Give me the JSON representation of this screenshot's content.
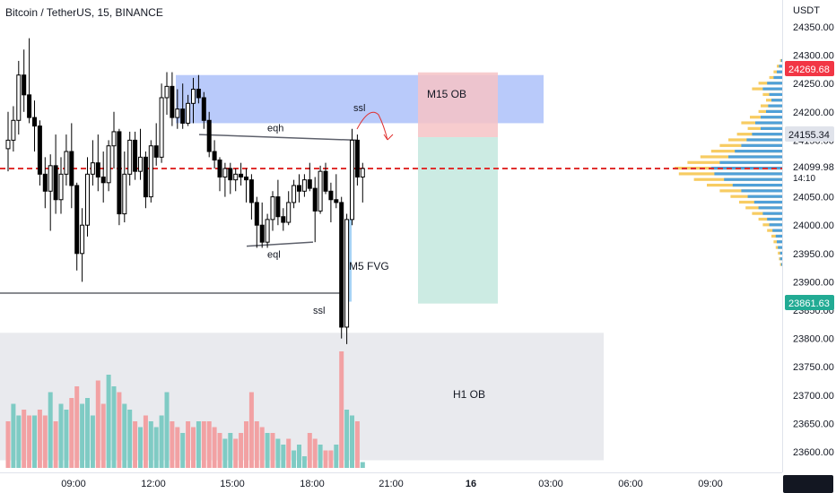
{
  "header": {
    "title": "Bitcoin / TetherUS, 15, BINANCE"
  },
  "colors": {
    "up": "#26a69a",
    "down": "#000000",
    "up_volume": "#7fcbc4",
    "down_volume": "#f2a1a3",
    "current_price_line": "#e0302f",
    "m15_ob_fill": "#7f9ff5",
    "h1_ob_fill": "#dadce2",
    "fvg_fill": "#a7d3f5",
    "trade_stop": "#f6c3c6",
    "trade_target": "#bfe6dc",
    "profile_yellow": "#f6c347",
    "profile_blue": "#3c9be6"
  },
  "chart_data": {
    "type": "candlestick",
    "symbol": "Bitcoin / TetherUS",
    "interval": "15",
    "exchange": "BINANCE",
    "y_axis": {
      "unit": "USDT",
      "range": [
        23570,
        24370
      ],
      "ticks": [
        24350,
        24300,
        24250,
        24200,
        24150,
        24100,
        24050,
        24000,
        23950,
        23900,
        23850,
        23800,
        23750,
        23700,
        23650,
        23600
      ]
    },
    "x_axis": {
      "ticks": [
        "09:00",
        "12:00",
        "15:00",
        "18:00",
        "21:00",
        "16",
        "03:00",
        "06:00",
        "09:00"
      ],
      "bold_ticks": [
        "16"
      ]
    },
    "price_labels": [
      {
        "id": "stop",
        "value": "24269.68",
        "color": "#e0302f"
      },
      {
        "id": "entry",
        "value": "24155.34",
        "color": "#787b86"
      },
      {
        "id": "current",
        "value": "24099.98",
        "sub": "14:10",
        "color": "#131722"
      },
      {
        "id": "target",
        "value": "23861.63",
        "color": "#22ab94"
      }
    ],
    "current_price": 24099.98,
    "candles": [
      {
        "o": 24135,
        "h": 24200,
        "l": 24095,
        "c": 24150
      },
      {
        "o": 24150,
        "h": 24210,
        "l": 24130,
        "c": 24185
      },
      {
        "o": 24185,
        "h": 24290,
        "l": 24160,
        "c": 24265
      },
      {
        "o": 24265,
        "h": 24310,
        "l": 24200,
        "c": 24230
      },
      {
        "o": 24230,
        "h": 24330,
        "l": 24180,
        "c": 24190
      },
      {
        "o": 24190,
        "h": 24220,
        "l": 24130,
        "c": 24175
      },
      {
        "o": 24175,
        "h": 24185,
        "l": 24070,
        "c": 24090
      },
      {
        "o": 24090,
        "h": 24120,
        "l": 24030,
        "c": 24060
      },
      {
        "o": 24060,
        "h": 24125,
        "l": 23990,
        "c": 24105
      },
      {
        "o": 24105,
        "h": 24160,
        "l": 24020,
        "c": 24045
      },
      {
        "o": 24045,
        "h": 24120,
        "l": 24020,
        "c": 24090
      },
      {
        "o": 24090,
        "h": 24160,
        "l": 24070,
        "c": 24130
      },
      {
        "o": 24130,
        "h": 24180,
        "l": 24030,
        "c": 24070
      },
      {
        "o": 24070,
        "h": 24075,
        "l": 23920,
        "c": 23950
      },
      {
        "o": 23950,
        "h": 24030,
        "l": 23900,
        "c": 24000
      },
      {
        "o": 24000,
        "h": 24120,
        "l": 23980,
        "c": 24090
      },
      {
        "o": 24090,
        "h": 24150,
        "l": 24070,
        "c": 24110
      },
      {
        "o": 24110,
        "h": 24160,
        "l": 24060,
        "c": 24085
      },
      {
        "o": 24085,
        "h": 24130,
        "l": 24040,
        "c": 24075
      },
      {
        "o": 24075,
        "h": 24150,
        "l": 24060,
        "c": 24140
      },
      {
        "o": 24140,
        "h": 24200,
        "l": 24100,
        "c": 24165
      },
      {
        "o": 24165,
        "h": 24170,
        "l": 24000,
        "c": 24020
      },
      {
        "o": 24020,
        "h": 24130,
        "l": 24005,
        "c": 24090
      },
      {
        "o": 24090,
        "h": 24165,
        "l": 24070,
        "c": 24150
      },
      {
        "o": 24150,
        "h": 24165,
        "l": 24080,
        "c": 24095
      },
      {
        "o": 24095,
        "h": 24170,
        "l": 24080,
        "c": 24120
      },
      {
        "o": 24120,
        "h": 24130,
        "l": 24030,
        "c": 24050
      },
      {
        "o": 24050,
        "h": 24150,
        "l": 24040,
        "c": 24140
      },
      {
        "o": 24140,
        "h": 24180,
        "l": 24105,
        "c": 24120
      },
      {
        "o": 24120,
        "h": 24250,
        "l": 24110,
        "c": 24225
      },
      {
        "o": 24225,
        "h": 24270,
        "l": 24195,
        "c": 24245
      },
      {
        "o": 24245,
        "h": 24270,
        "l": 24175,
        "c": 24190
      },
      {
        "o": 24190,
        "h": 24240,
        "l": 24170,
        "c": 24205
      },
      {
        "o": 24205,
        "h": 24250,
        "l": 24170,
        "c": 24180
      },
      {
        "o": 24180,
        "h": 24230,
        "l": 24175,
        "c": 24215
      },
      {
        "o": 24215,
        "h": 24260,
        "l": 24180,
        "c": 24240
      },
      {
        "o": 24240,
        "h": 24265,
        "l": 24215,
        "c": 24225
      },
      {
        "o": 24225,
        "h": 24235,
        "l": 24170,
        "c": 24185
      },
      {
        "o": 24185,
        "h": 24200,
        "l": 24120,
        "c": 24130
      },
      {
        "o": 24130,
        "h": 24150,
        "l": 24100,
        "c": 24115
      },
      {
        "o": 24115,
        "h": 24120,
        "l": 24060,
        "c": 24085
      },
      {
        "o": 24085,
        "h": 24110,
        "l": 24050,
        "c": 24100
      },
      {
        "o": 24100,
        "h": 24110,
        "l": 24055,
        "c": 24080
      },
      {
        "o": 24080,
        "h": 24100,
        "l": 24060,
        "c": 24090
      },
      {
        "o": 24090,
        "h": 24110,
        "l": 24070,
        "c": 24085
      },
      {
        "o": 24085,
        "h": 24100,
        "l": 24040,
        "c": 24080
      },
      {
        "o": 24080,
        "h": 24090,
        "l": 24010,
        "c": 24040
      },
      {
        "o": 24040,
        "h": 24050,
        "l": 23960,
        "c": 24000
      },
      {
        "o": 24000,
        "h": 24040,
        "l": 23960,
        "c": 23970
      },
      {
        "o": 23970,
        "h": 24020,
        "l": 23960,
        "c": 24010
      },
      {
        "o": 24010,
        "h": 24060,
        "l": 23990,
        "c": 24050
      },
      {
        "o": 24050,
        "h": 24080,
        "l": 24000,
        "c": 24015
      },
      {
        "o": 24015,
        "h": 24030,
        "l": 23990,
        "c": 24005
      },
      {
        "o": 24005,
        "h": 24060,
        "l": 24000,
        "c": 24040
      },
      {
        "o": 24040,
        "h": 24080,
        "l": 24030,
        "c": 24070
      },
      {
        "o": 24070,
        "h": 24090,
        "l": 24040,
        "c": 24060
      },
      {
        "o": 24060,
        "h": 24090,
        "l": 24050,
        "c": 24080
      },
      {
        "o": 24080,
        "h": 24110,
        "l": 24060,
        "c": 24065
      },
      {
        "o": 24065,
        "h": 24085,
        "l": 23970,
        "c": 24025
      },
      {
        "o": 24025,
        "h": 24105,
        "l": 24020,
        "c": 24095
      },
      {
        "o": 24095,
        "h": 24110,
        "l": 24055,
        "c": 24060
      },
      {
        "o": 24060,
        "h": 24075,
        "l": 24005,
        "c": 24045
      },
      {
        "o": 24045,
        "h": 24090,
        "l": 24030,
        "c": 24040
      },
      {
        "o": 24040,
        "h": 24050,
        "l": 23800,
        "c": 23820
      },
      {
        "o": 23820,
        "h": 24020,
        "l": 23790,
        "c": 24010
      },
      {
        "o": 24010,
        "h": 24170,
        "l": 24000,
        "c": 24150
      },
      {
        "o": 24150,
        "h": 24160,
        "l": 24070,
        "c": 24085
      },
      {
        "o": 24085,
        "h": 24110,
        "l": 24040,
        "c": 24100
      }
    ],
    "volume": [
      {
        "v": 0.4,
        "up": false
      },
      {
        "v": 0.55,
        "up": true
      },
      {
        "v": 0.45,
        "up": true
      },
      {
        "v": 0.5,
        "up": false
      },
      {
        "v": 0.45,
        "up": false
      },
      {
        "v": 0.45,
        "up": true
      },
      {
        "v": 0.5,
        "up": false
      },
      {
        "v": 0.45,
        "up": false
      },
      {
        "v": 0.65,
        "up": true
      },
      {
        "v": 0.4,
        "up": false
      },
      {
        "v": 0.55,
        "up": true
      },
      {
        "v": 0.5,
        "up": true
      },
      {
        "v": 0.6,
        "up": false
      },
      {
        "v": 0.7,
        "up": false
      },
      {
        "v": 0.55,
        "up": true
      },
      {
        "v": 0.6,
        "up": true
      },
      {
        "v": 0.45,
        "up": true
      },
      {
        "v": 0.75,
        "up": false
      },
      {
        "v": 0.55,
        "up": false
      },
      {
        "v": 0.8,
        "up": true
      },
      {
        "v": 0.7,
        "up": true
      },
      {
        "v": 0.65,
        "up": false
      },
      {
        "v": 0.55,
        "up": true
      },
      {
        "v": 0.5,
        "up": true
      },
      {
        "v": 0.4,
        "up": false
      },
      {
        "v": 0.35,
        "up": true
      },
      {
        "v": 0.45,
        "up": false
      },
      {
        "v": 0.4,
        "up": true
      },
      {
        "v": 0.35,
        "up": true
      },
      {
        "v": 0.45,
        "up": true
      },
      {
        "v": 0.65,
        "up": true
      },
      {
        "v": 0.4,
        "up": false
      },
      {
        "v": 0.35,
        "up": false
      },
      {
        "v": 0.3,
        "up": true
      },
      {
        "v": 0.4,
        "up": false
      },
      {
        "v": 0.35,
        "up": false
      },
      {
        "v": 0.4,
        "up": true
      },
      {
        "v": 0.4,
        "up": false
      },
      {
        "v": 0.4,
        "up": false
      },
      {
        "v": 0.35,
        "up": false
      },
      {
        "v": 0.3,
        "up": false
      },
      {
        "v": 0.25,
        "up": true
      },
      {
        "v": 0.3,
        "up": true
      },
      {
        "v": 0.25,
        "up": false
      },
      {
        "v": 0.3,
        "up": false
      },
      {
        "v": 0.4,
        "up": false
      },
      {
        "v": 0.65,
        "up": false
      },
      {
        "v": 0.4,
        "up": false
      },
      {
        "v": 0.35,
        "up": false
      },
      {
        "v": 0.3,
        "up": true
      },
      {
        "v": 0.3,
        "up": false
      },
      {
        "v": 0.25,
        "up": true
      },
      {
        "v": 0.2,
        "up": true
      },
      {
        "v": 0.25,
        "up": false
      },
      {
        "v": 0.15,
        "up": true
      },
      {
        "v": 0.2,
        "up": true
      },
      {
        "v": 0.1,
        "up": true
      },
      {
        "v": 0.3,
        "up": false
      },
      {
        "v": 0.25,
        "up": false
      },
      {
        "v": 0.2,
        "up": true
      },
      {
        "v": 0.15,
        "up": false
      },
      {
        "v": 0.15,
        "up": false
      },
      {
        "v": 0.2,
        "up": true
      },
      {
        "v": 1.0,
        "up": false
      },
      {
        "v": 0.5,
        "up": true
      },
      {
        "v": 0.45,
        "up": true
      },
      {
        "v": 0.4,
        "up": false
      },
      {
        "v": 0.05,
        "up": true
      }
    ],
    "zones": [
      {
        "id": "m15-ob",
        "label": "M15 OB",
        "top": 24265,
        "bottom": 24180,
        "fill": "#7f9ff5"
      },
      {
        "id": "h1-ob",
        "label": "H1 OB",
        "top": 23810,
        "bottom": 23585,
        "fill": "#dadce2"
      },
      {
        "id": "fvg",
        "label": "M5 FVG",
        "top": 24010,
        "bottom": 23865,
        "fill": "#a7d3f5"
      }
    ],
    "trade": {
      "stop": 24269.68,
      "entry": 24155.34,
      "target": 23861.63
    },
    "annotations": [
      {
        "id": "eqh",
        "text": "eqh",
        "price": 24158
      },
      {
        "id": "eql",
        "text": "eql",
        "price": 23965
      },
      {
        "id": "ssl-low",
        "text": "ssl",
        "price": 23880
      },
      {
        "id": "ssl-high",
        "text": "ssl",
        "price": 24185
      },
      {
        "id": "m5-fvg",
        "text": "M5 FVG",
        "price": 23900
      },
      {
        "id": "m15-ob",
        "text": "M15 OB",
        "price": 24240
      },
      {
        "id": "h1-ob",
        "text": "H1 OB",
        "price": 23695
      }
    ],
    "volume_profile": [
      {
        "p": 24290,
        "y": 0.02,
        "b": 0.01
      },
      {
        "p": 24280,
        "y": 0.05,
        "b": 0.03
      },
      {
        "p": 24270,
        "y": 0.08,
        "b": 0.05
      },
      {
        "p": 24260,
        "y": 0.12,
        "b": 0.08
      },
      {
        "p": 24250,
        "y": 0.22,
        "b": 0.14
      },
      {
        "p": 24240,
        "y": 0.28,
        "b": 0.18
      },
      {
        "p": 24230,
        "y": 0.18,
        "b": 0.12
      },
      {
        "p": 24220,
        "y": 0.15,
        "b": 0.1
      },
      {
        "p": 24210,
        "y": 0.2,
        "b": 0.13
      },
      {
        "p": 24200,
        "y": 0.22,
        "b": 0.15
      },
      {
        "p": 24190,
        "y": 0.3,
        "b": 0.2
      },
      {
        "p": 24180,
        "y": 0.38,
        "b": 0.25
      },
      {
        "p": 24170,
        "y": 0.32,
        "b": 0.2
      },
      {
        "p": 24160,
        "y": 0.42,
        "b": 0.28
      },
      {
        "p": 24150,
        "y": 0.5,
        "b": 0.33
      },
      {
        "p": 24140,
        "y": 0.58,
        "b": 0.38
      },
      {
        "p": 24130,
        "y": 0.66,
        "b": 0.44
      },
      {
        "p": 24120,
        "y": 0.76,
        "b": 0.5
      },
      {
        "p": 24110,
        "y": 0.88,
        "b": 0.58
      },
      {
        "p": 24100,
        "y": 1.0,
        "b": 0.66
      },
      {
        "p": 24090,
        "y": 0.96,
        "b": 0.63
      },
      {
        "p": 24080,
        "y": 0.82,
        "b": 0.54
      },
      {
        "p": 24070,
        "y": 0.7,
        "b": 0.46
      },
      {
        "p": 24060,
        "y": 0.58,
        "b": 0.38
      },
      {
        "p": 24050,
        "y": 0.48,
        "b": 0.32
      },
      {
        "p": 24040,
        "y": 0.4,
        "b": 0.26
      },
      {
        "p": 24030,
        "y": 0.34,
        "b": 0.22
      },
      {
        "p": 24020,
        "y": 0.28,
        "b": 0.18
      },
      {
        "p": 24010,
        "y": 0.22,
        "b": 0.14
      },
      {
        "p": 24000,
        "y": 0.18,
        "b": 0.12
      },
      {
        "p": 23990,
        "y": 0.14,
        "b": 0.09
      },
      {
        "p": 23980,
        "y": 0.1,
        "b": 0.06
      },
      {
        "p": 23970,
        "y": 0.08,
        "b": 0.05
      },
      {
        "p": 23960,
        "y": 0.06,
        "b": 0.04
      },
      {
        "p": 23950,
        "y": 0.04,
        "b": 0.02
      },
      {
        "p": 23940,
        "y": 0.03,
        "b": 0.02
      },
      {
        "p": 23930,
        "y": 0.02,
        "b": 0.01
      }
    ]
  },
  "axis_unit_label": "USDT"
}
